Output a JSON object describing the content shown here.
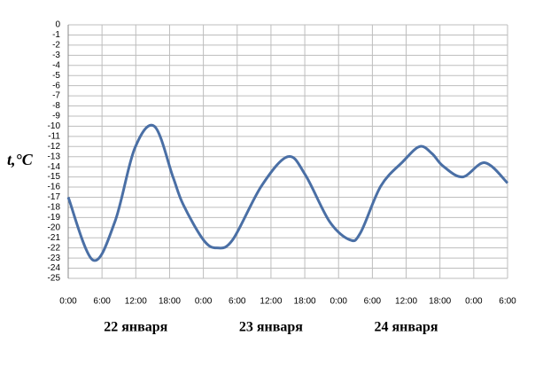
{
  "chart_data": {
    "type": "line",
    "y_label": "t,°C",
    "color": "#4a6fa5",
    "grid": true,
    "x": [
      0,
      4.4,
      8.3,
      11.8,
      15.3,
      18.6,
      20.4,
      24,
      26.4,
      29.2,
      34.3,
      39,
      42.1,
      46.4,
      50,
      51.9,
      55.5,
      59.4,
      62.4,
      64.6,
      66.5,
      70,
      74,
      78
    ],
    "values": [
      -17,
      -23.2,
      -19.4,
      -12.2,
      -10,
      -15,
      -17.7,
      -21.2,
      -22,
      -21.2,
      -15.9,
      -13,
      -14.8,
      -19.4,
      -21.2,
      -20.5,
      -15.9,
      -13.5,
      -12,
      -12.7,
      -13.9,
      -15,
      -13.6,
      -15.6
    ],
    "xlim": [
      0,
      78
    ],
    "xticks": [
      {
        "value": 0,
        "label": "0:00"
      },
      {
        "value": 6,
        "label": "6:00"
      },
      {
        "value": 12,
        "label": "12:00"
      },
      {
        "value": 18,
        "label": "18:00"
      },
      {
        "value": 24,
        "label": "0:00"
      },
      {
        "value": 30,
        "label": "6:00"
      },
      {
        "value": 36,
        "label": "12:00"
      },
      {
        "value": 42,
        "label": "18:00"
      },
      {
        "value": 48,
        "label": "0:00"
      },
      {
        "value": 54,
        "label": "6:00"
      },
      {
        "value": 60,
        "label": "12:00"
      },
      {
        "value": 66,
        "label": "18:00"
      },
      {
        "value": 72,
        "label": "0:00"
      },
      {
        "value": 78,
        "label": "6:00"
      }
    ],
    "ylim": [
      -25,
      0
    ],
    "yticks": [
      0,
      -1,
      -2,
      -3,
      -4,
      -5,
      -6,
      -7,
      -8,
      -9,
      -10,
      -11,
      -12,
      -13,
      -14,
      -15,
      -16,
      -17,
      -18,
      -19,
      -20,
      -21,
      -22,
      -23,
      -24,
      -25
    ],
    "day_labels": [
      {
        "text": "22 января",
        "x": 12
      },
      {
        "text": "23 января",
        "x": 36
      },
      {
        "text": "24 января",
        "x": 60
      }
    ]
  }
}
